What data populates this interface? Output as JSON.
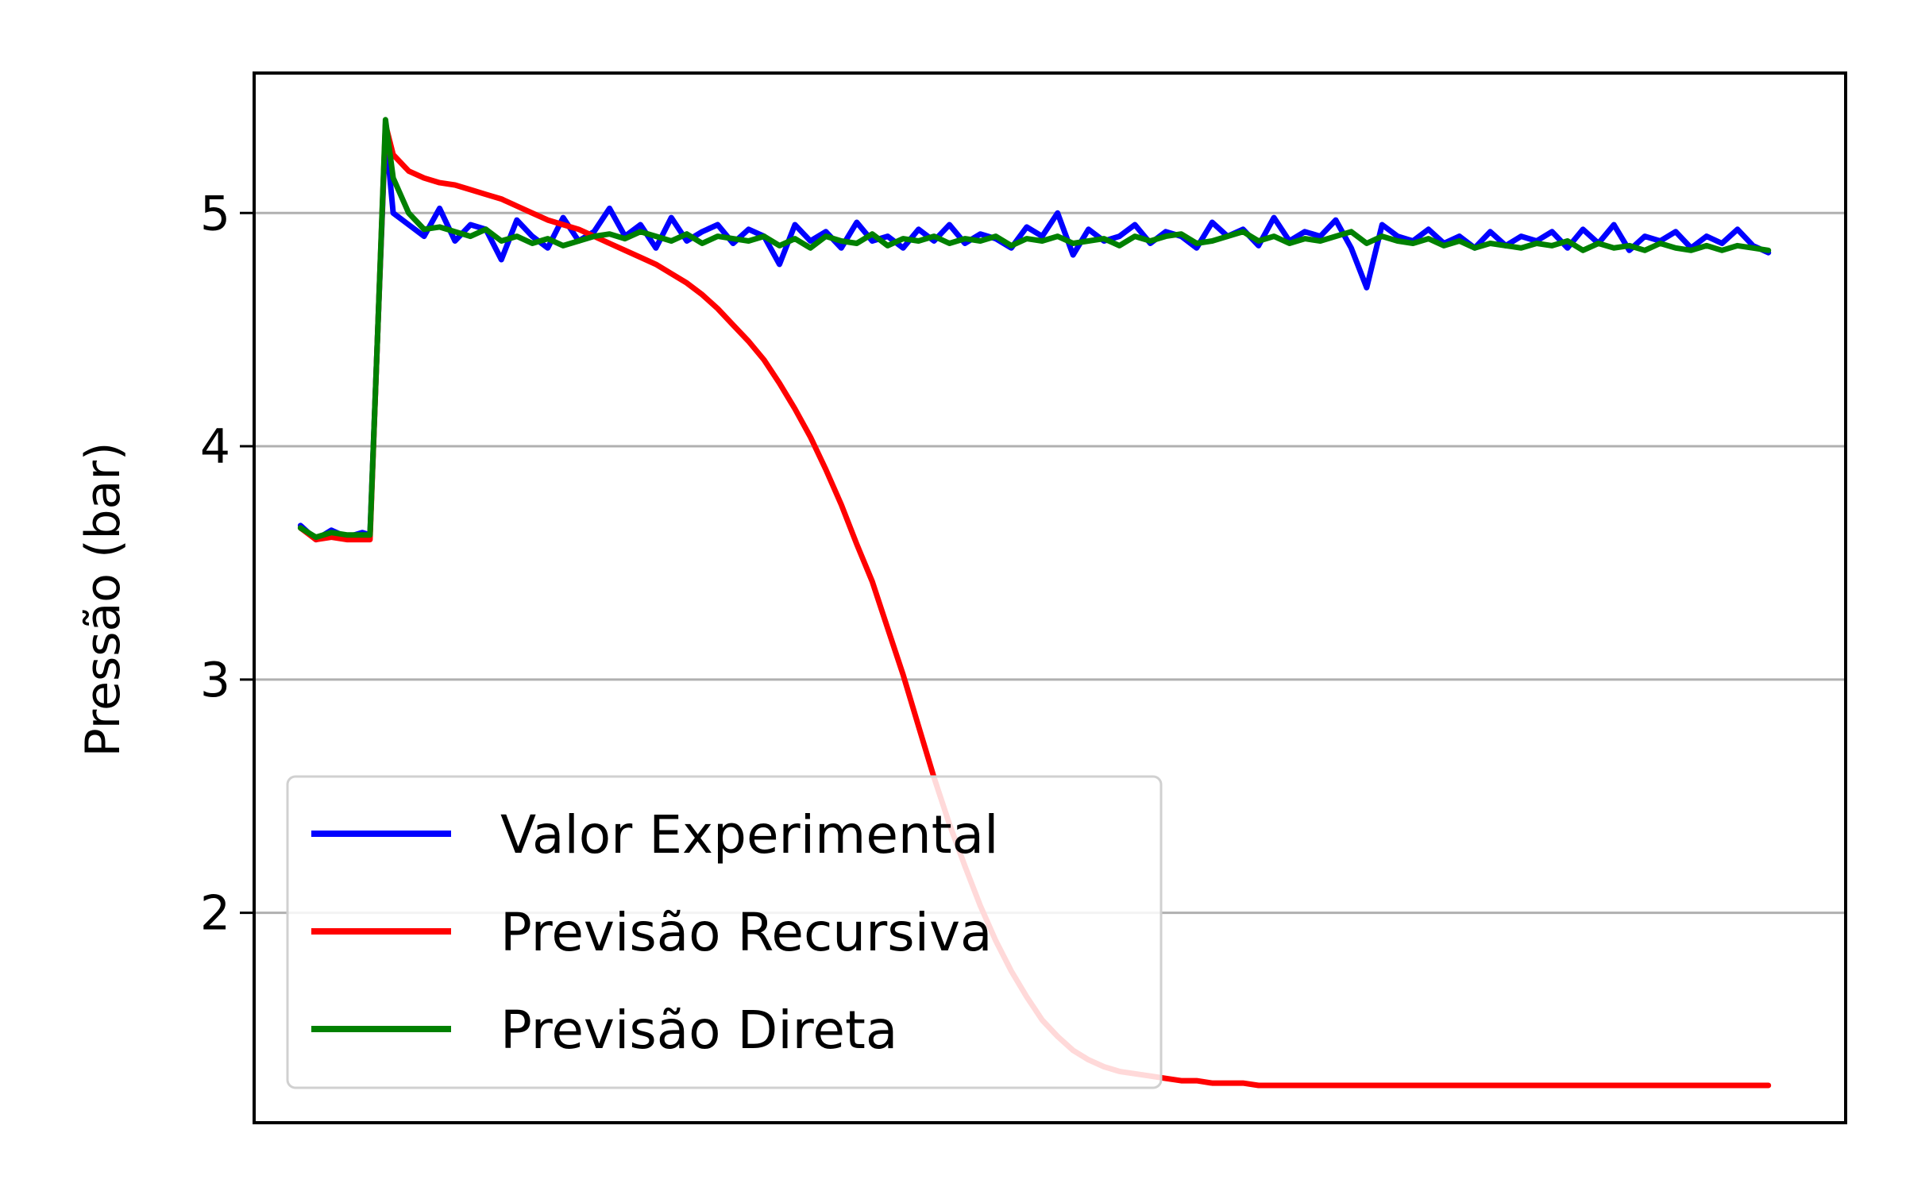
{
  "chart_data": {
    "type": "line",
    "title": "",
    "xlabel": "",
    "ylabel": "Pressão (bar)",
    "xlim": [
      -6,
      200
    ],
    "ylim": [
      1.1,
      5.6
    ],
    "yticks": [
      2,
      3,
      4,
      5
    ],
    "ytick_labels": [
      "2",
      "3",
      "4",
      "5"
    ],
    "grid": "horizontal",
    "legend_position": "lower-left",
    "series": [
      {
        "name": "Valor Experimental",
        "color": "#0000ff",
        "x": [
          0,
          2,
          4,
          6,
          8,
          9,
          10,
          11,
          12,
          14,
          16,
          18,
          20,
          22,
          24,
          26,
          28,
          30,
          32,
          34,
          36,
          38,
          40,
          42,
          44,
          46,
          48,
          50,
          52,
          54,
          56,
          58,
          60,
          62,
          64,
          66,
          68,
          70,
          72,
          74,
          76,
          78,
          80,
          82,
          84,
          86,
          88,
          90,
          92,
          94,
          96,
          98,
          100,
          102,
          104,
          106,
          108,
          110,
          112,
          114,
          116,
          118,
          120,
          122,
          124,
          126,
          128,
          130,
          132,
          134,
          136,
          138,
          140,
          142,
          144,
          146,
          148,
          150,
          152,
          154,
          156,
          158,
          160,
          162,
          164,
          166,
          168,
          170,
          172,
          174,
          176,
          178,
          180,
          182,
          184,
          186,
          188,
          190
        ],
        "y": [
          3.66,
          3.6,
          3.64,
          3.61,
          3.63,
          3.62,
          4.5,
          5.35,
          5.0,
          4.95,
          4.9,
          5.02,
          4.88,
          4.95,
          4.93,
          4.8,
          4.97,
          4.9,
          4.85,
          4.98,
          4.88,
          4.92,
          5.02,
          4.9,
          4.95,
          4.85,
          4.98,
          4.88,
          4.92,
          4.95,
          4.87,
          4.93,
          4.9,
          4.78,
          4.95,
          4.88,
          4.92,
          4.85,
          4.96,
          4.88,
          4.9,
          4.85,
          4.93,
          4.88,
          4.95,
          4.87,
          4.91,
          4.89,
          4.85,
          4.94,
          4.9,
          5.0,
          4.82,
          4.93,
          4.88,
          4.9,
          4.95,
          4.87,
          4.92,
          4.9,
          4.85,
          4.96,
          4.9,
          4.93,
          4.86,
          4.98,
          4.88,
          4.92,
          4.9,
          4.97,
          4.85,
          4.68,
          4.95,
          4.9,
          4.88,
          4.93,
          4.87,
          4.9,
          4.85,
          4.92,
          4.86,
          4.9,
          4.88,
          4.92,
          4.85,
          4.93,
          4.87,
          4.95,
          4.84,
          4.9,
          4.88,
          4.92,
          4.85,
          4.9,
          4.87,
          4.93,
          4.86,
          4.83
        ]
      },
      {
        "name": "Previsão Recursiva",
        "color": "#ff0000",
        "x": [
          0,
          2,
          4,
          6,
          8,
          9,
          10,
          11,
          12,
          14,
          16,
          18,
          20,
          22,
          24,
          26,
          28,
          30,
          32,
          34,
          36,
          38,
          40,
          42,
          44,
          46,
          48,
          50,
          52,
          54,
          56,
          58,
          60,
          62,
          64,
          66,
          68,
          70,
          72,
          74,
          76,
          78,
          80,
          82,
          84,
          86,
          88,
          90,
          92,
          94,
          96,
          98,
          100,
          102,
          104,
          106,
          108,
          110,
          112,
          114,
          116,
          118,
          120,
          122,
          124,
          126,
          128,
          130,
          132,
          134,
          136,
          138,
          140,
          142,
          144,
          146,
          148,
          150,
          152,
          154,
          156,
          158,
          160,
          162,
          164,
          166,
          168,
          170,
          172,
          174,
          176,
          178,
          180,
          182,
          184,
          186,
          188,
          190
        ],
        "y": [
          3.65,
          3.6,
          3.61,
          3.6,
          3.6,
          3.6,
          4.5,
          5.38,
          5.25,
          5.18,
          5.15,
          5.13,
          5.12,
          5.1,
          5.08,
          5.06,
          5.03,
          5.0,
          4.97,
          4.95,
          4.93,
          4.9,
          4.87,
          4.84,
          4.81,
          4.78,
          4.74,
          4.7,
          4.65,
          4.59,
          4.52,
          4.45,
          4.37,
          4.27,
          4.16,
          4.04,
          3.9,
          3.75,
          3.58,
          3.42,
          3.22,
          3.02,
          2.8,
          2.58,
          2.38,
          2.2,
          2.03,
          1.88,
          1.75,
          1.64,
          1.54,
          1.47,
          1.41,
          1.37,
          1.34,
          1.32,
          1.31,
          1.3,
          1.29,
          1.28,
          1.28,
          1.27,
          1.27,
          1.27,
          1.26,
          1.26,
          1.26,
          1.26,
          1.26,
          1.26,
          1.26,
          1.26,
          1.26,
          1.26,
          1.26,
          1.26,
          1.26,
          1.26,
          1.26,
          1.26,
          1.26,
          1.26,
          1.26,
          1.26,
          1.26,
          1.26,
          1.26,
          1.26,
          1.26,
          1.26,
          1.26,
          1.26,
          1.26,
          1.26,
          1.26,
          1.26,
          1.26,
          1.26
        ]
      },
      {
        "name": "Previsão Direta",
        "color": "#008000",
        "x": [
          0,
          2,
          4,
          6,
          8,
          9,
          10,
          11,
          12,
          14,
          16,
          18,
          20,
          22,
          24,
          26,
          28,
          30,
          32,
          34,
          36,
          38,
          40,
          42,
          44,
          46,
          48,
          50,
          52,
          54,
          56,
          58,
          60,
          62,
          64,
          66,
          68,
          70,
          72,
          74,
          76,
          78,
          80,
          82,
          84,
          86,
          88,
          90,
          92,
          94,
          96,
          98,
          100,
          102,
          104,
          106,
          108,
          110,
          112,
          114,
          116,
          118,
          120,
          122,
          124,
          126,
          128,
          130,
          132,
          134,
          136,
          138,
          140,
          142,
          144,
          146,
          148,
          150,
          152,
          154,
          156,
          158,
          160,
          162,
          164,
          166,
          168,
          170,
          172,
          174,
          176,
          178,
          180,
          182,
          184,
          186,
          188,
          190
        ],
        "y": [
          3.65,
          3.61,
          3.63,
          3.62,
          3.62,
          3.62,
          4.5,
          5.4,
          5.15,
          5.0,
          4.93,
          4.94,
          4.92,
          4.9,
          4.93,
          4.88,
          4.9,
          4.87,
          4.89,
          4.86,
          4.88,
          4.9,
          4.91,
          4.89,
          4.92,
          4.9,
          4.88,
          4.91,
          4.87,
          4.9,
          4.89,
          4.88,
          4.9,
          4.86,
          4.89,
          4.85,
          4.9,
          4.88,
          4.87,
          4.91,
          4.86,
          4.89,
          4.88,
          4.9,
          4.87,
          4.89,
          4.88,
          4.9,
          4.86,
          4.89,
          4.88,
          4.9,
          4.87,
          4.88,
          4.89,
          4.86,
          4.9,
          4.88,
          4.9,
          4.91,
          4.87,
          4.88,
          4.9,
          4.92,
          4.88,
          4.9,
          4.87,
          4.89,
          4.88,
          4.9,
          4.92,
          4.87,
          4.9,
          4.88,
          4.87,
          4.89,
          4.86,
          4.88,
          4.85,
          4.87,
          4.86,
          4.85,
          4.87,
          4.86,
          4.88,
          4.84,
          4.87,
          4.85,
          4.86,
          4.84,
          4.87,
          4.85,
          4.84,
          4.86,
          4.84,
          4.86,
          4.85,
          4.84
        ]
      }
    ]
  }
}
